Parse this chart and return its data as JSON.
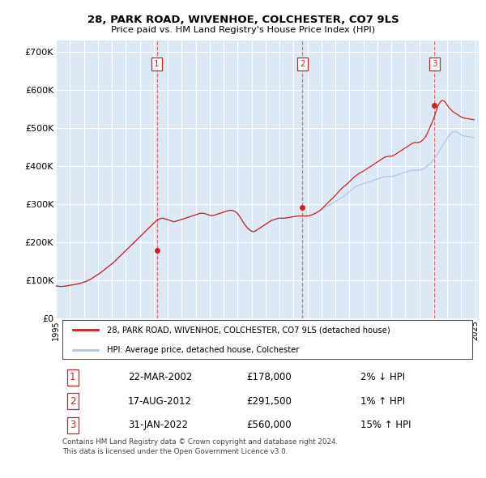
{
  "title": "28, PARK ROAD, WIVENHOE, COLCHESTER, CO7 9LS",
  "subtitle": "Price paid vs. HM Land Registry's House Price Index (HPI)",
  "ylim": [
    0,
    730000
  ],
  "yticks": [
    0,
    100000,
    200000,
    300000,
    400000,
    500000,
    600000,
    700000
  ],
  "ytick_labels": [
    "£0",
    "£100K",
    "£200K",
    "£300K",
    "£400K",
    "£500K",
    "£600K",
    "£700K"
  ],
  "background_color": "#dce9f5",
  "grid_color": "#ffffff",
  "legend_label_red": "28, PARK ROAD, WIVENHOE, COLCHESTER, CO7 9LS (detached house)",
  "legend_label_blue": "HPI: Average price, detached house, Colchester",
  "sale_dates": [
    "2002-03-22",
    "2012-08-17",
    "2022-01-31"
  ],
  "sale_prices": [
    178000,
    291500,
    560000
  ],
  "sale_labels": [
    "1",
    "2",
    "3"
  ],
  "sale_info": [
    [
      "1",
      "22-MAR-2002",
      "£178,000",
      "2% ↓ HPI"
    ],
    [
      "2",
      "17-AUG-2012",
      "£291,500",
      "1% ↑ HPI"
    ],
    [
      "3",
      "31-JAN-2022",
      "£560,000",
      "15% ↑ HPI"
    ]
  ],
  "footer": "Contains HM Land Registry data © Crown copyright and database right 2024.\nThis data is licensed under the Open Government Licence v3.0.",
  "hpi_values_monthly": [
    85000,
    84500,
    84200,
    83800,
    83500,
    83500,
    83800,
    84200,
    84500,
    85000,
    85500,
    86000,
    86500,
    87000,
    87500,
    88000,
    88500,
    89000,
    89800,
    90500,
    91200,
    92000,
    93000,
    94000,
    95000,
    96000,
    97000,
    98500,
    100000,
    101500,
    103000,
    105000,
    107000,
    109000,
    111000,
    113000,
    115000,
    117000,
    119000,
    121000,
    123500,
    126000,
    128500,
    131000,
    133500,
    136000,
    138500,
    141000,
    143000,
    145000,
    148000,
    151000,
    154000,
    157000,
    160000,
    163000,
    166000,
    169000,
    172000,
    175000,
    178000,
    181000,
    184000,
    187000,
    190000,
    193000,
    196000,
    199000,
    202000,
    205000,
    208000,
    211000,
    214000,
    217000,
    220000,
    223000,
    226000,
    229000,
    232000,
    235000,
    238000,
    241000,
    244000,
    247000,
    250000,
    253000,
    256000,
    258000,
    260000,
    261000,
    262000,
    263000,
    263000,
    262000,
    261000,
    260000,
    259000,
    258000,
    257000,
    256000,
    255000,
    254000,
    254000,
    255000,
    256000,
    257000,
    258000,
    259000,
    260000,
    261000,
    262000,
    263000,
    264000,
    265000,
    266000,
    267000,
    268000,
    269000,
    270000,
    271000,
    272000,
    273000,
    274000,
    275000,
    276000,
    276000,
    276000,
    276000,
    275000,
    274000,
    273000,
    272000,
    271000,
    270000,
    270000,
    270000,
    271000,
    272000,
    273000,
    274000,
    275000,
    276000,
    277000,
    278000,
    279000,
    280000,
    281000,
    282000,
    283000,
    283500,
    284000,
    283500,
    283000,
    282000,
    280000,
    278000,
    275000,
    271000,
    267000,
    262000,
    257000,
    252000,
    247000,
    243000,
    239000,
    236000,
    233000,
    231000,
    229000,
    228000,
    228000,
    229000,
    231000,
    233000,
    235000,
    237000,
    239000,
    241000,
    243000,
    245000,
    247000,
    249000,
    251000,
    253000,
    255000,
    257000,
    258000,
    259000,
    260000,
    261000,
    262000,
    263000,
    263000,
    263000,
    263000,
    263000,
    263000,
    263500,
    264000,
    264500,
    265000,
    265500,
    266000,
    266500,
    267000,
    267500,
    268000,
    268500,
    269000,
    269000,
    269000,
    269000,
    269000,
    269000,
    269000,
    269000,
    269000,
    269500,
    270000,
    271000,
    272000,
    273500,
    275000,
    276500,
    278000,
    280000,
    282000,
    284000,
    286000,
    288000,
    290000,
    292000,
    293500,
    295000,
    296500,
    298000,
    299500,
    301000,
    303000,
    305000,
    307000,
    309000,
    311000,
    313000,
    315000,
    317000,
    319000,
    321000,
    323000,
    325500,
    328000,
    330500,
    333000,
    335500,
    338000,
    340500,
    343000,
    345000,
    347000,
    348500,
    350000,
    351000,
    352000,
    353000,
    354000,
    355000,
    356000,
    357000,
    358000,
    359000,
    360000,
    361000,
    362000,
    363000,
    364000,
    365000,
    366000,
    367000,
    368000,
    369000,
    370000,
    371000,
    372000,
    372500,
    373000,
    373000,
    373000,
    373000,
    373000,
    373500,
    374000,
    375000,
    376000,
    377000,
    378000,
    379000,
    380000,
    381000,
    382000,
    383000,
    384000,
    385000,
    386000,
    387000,
    388000,
    388500,
    389000,
    389000,
    389000,
    389000,
    389000,
    389000,
    389500,
    390000,
    391000,
    392500,
    394000,
    396000,
    398000,
    400500,
    403000,
    406000,
    409000,
    412000,
    416000,
    420000,
    424500,
    429000,
    434000,
    439000,
    444000,
    449000,
    454000,
    459000,
    464000,
    469000,
    474000,
    478000,
    482000,
    485000,
    488000,
    490000,
    491000,
    491000,
    490000,
    488000,
    486000,
    484000,
    482000,
    480500,
    479500,
    479000,
    478500,
    478000,
    477500,
    477000,
    476500,
    476000,
    475500,
    475000
  ],
  "red_hpi_values_monthly": [
    85000,
    84500,
    84200,
    83800,
    83500,
    83500,
    83800,
    84200,
    84500,
    85000,
    85500,
    86000,
    86500,
    87000,
    87500,
    88000,
    88500,
    89000,
    89800,
    90500,
    91200,
    92000,
    93000,
    94000,
    95000,
    96000,
    97000,
    98500,
    100000,
    101500,
    103000,
    105000,
    107000,
    109000,
    111000,
    113000,
    115000,
    117000,
    119000,
    121000,
    123500,
    126000,
    128500,
    131000,
    133500,
    136000,
    138500,
    141000,
    143000,
    145000,
    148000,
    151000,
    154000,
    157000,
    160000,
    163000,
    166000,
    169000,
    172000,
    175000,
    178000,
    181000,
    184000,
    187000,
    190000,
    193000,
    196000,
    199000,
    202000,
    205000,
    208000,
    211000,
    214000,
    217000,
    220000,
    223000,
    226000,
    229000,
    232000,
    235000,
    238000,
    241000,
    244000,
    247000,
    250000,
    253000,
    256000,
    258000,
    260000,
    261000,
    262000,
    263000,
    263000,
    262000,
    261000,
    260000,
    259000,
    258000,
    257000,
    256000,
    255000,
    254000,
    254000,
    255000,
    256000,
    257000,
    258000,
    259000,
    260000,
    261000,
    262000,
    263000,
    264000,
    265000,
    266000,
    267000,
    268000,
    269000,
    270000,
    271000,
    272000,
    273000,
    274000,
    275000,
    276000,
    276000,
    276000,
    276000,
    275000,
    274000,
    273000,
    272000,
    271000,
    270000,
    270000,
    270000,
    271000,
    272000,
    273000,
    274000,
    275000,
    276000,
    277000,
    278000,
    279000,
    280000,
    281000,
    282000,
    283000,
    283500,
    284000,
    283500,
    283000,
    282000,
    280000,
    278000,
    275000,
    271000,
    267000,
    262000,
    257000,
    252000,
    247000,
    243000,
    239000,
    236000,
    233000,
    231000,
    229000,
    228000,
    228000,
    229000,
    231000,
    233000,
    235000,
    237000,
    239000,
    241000,
    243000,
    245000,
    247000,
    249000,
    251000,
    253000,
    255000,
    257000,
    258000,
    259000,
    260000,
    261000,
    262000,
    263000,
    263000,
    263000,
    263000,
    263000,
    263000,
    263500,
    264000,
    264500,
    265000,
    265500,
    266000,
    266500,
    267000,
    267500,
    268000,
    268500,
    269000,
    269000,
    269000,
    269000,
    269000,
    269000,
    269000,
    269000,
    269000,
    269500,
    270000,
    271000,
    272000,
    273500,
    275000,
    276500,
    278000,
    280000,
    282000,
    284000,
    287000,
    290000,
    293000,
    296000,
    299000,
    302000,
    305000,
    308000,
    311000,
    314000,
    317000,
    320000,
    323000,
    326500,
    330000,
    333500,
    337000,
    340000,
    343000,
    345500,
    348000,
    350500,
    353000,
    356000,
    359000,
    362000,
    365000,
    368000,
    371000,
    373500,
    376000,
    378000,
    380000,
    382000,
    384000,
    385000,
    387000,
    389000,
    391000,
    393000,
    395000,
    397000,
    399000,
    401000,
    403000,
    405000,
    407000,
    409000,
    411000,
    413000,
    415000,
    417000,
    419000,
    421000,
    423000,
    424000,
    425000,
    425500,
    426000,
    426000,
    426000,
    427000,
    428000,
    430000,
    432000,
    434000,
    436000,
    438000,
    440000,
    442000,
    444000,
    446000,
    448000,
    450000,
    452000,
    454000,
    456000,
    458000,
    460000,
    461000,
    462000,
    462000,
    462000,
    462000,
    463000,
    464000,
    466000,
    469000,
    472000,
    476000,
    481000,
    487000,
    494000,
    501000,
    508000,
    515000,
    523000,
    532000,
    541000,
    550000,
    558000,
    564000,
    569000,
    572000,
    573000,
    572000,
    569000,
    565000,
    560000,
    556000,
    552000,
    549000,
    546000,
    543000,
    541000,
    539000,
    537000,
    535000,
    533000,
    531000,
    529000,
    528000,
    527000,
    526000,
    525500,
    525000,
    524500,
    524000,
    523500,
    523000,
    522500,
    522000
  ]
}
